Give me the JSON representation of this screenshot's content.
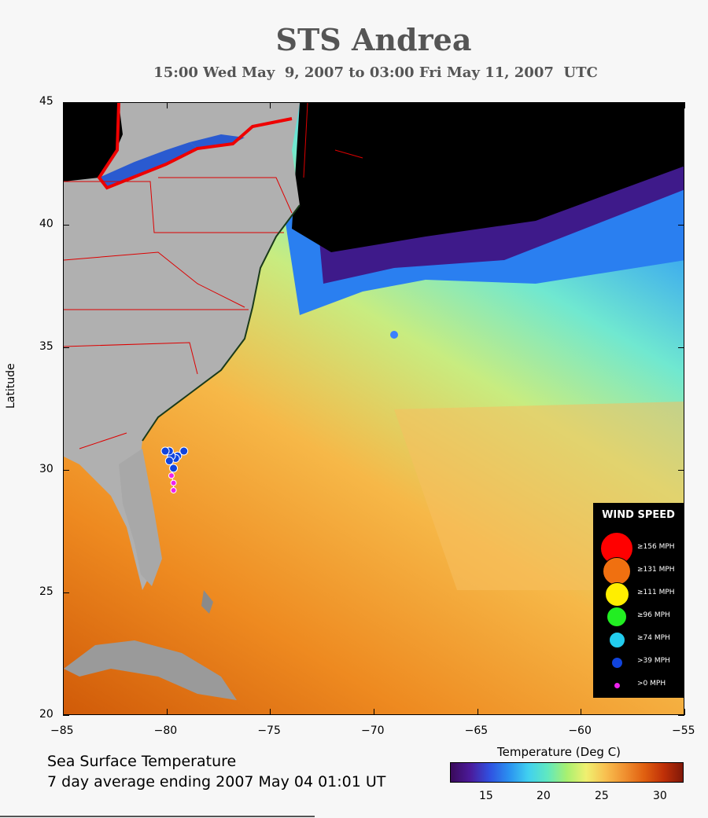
{
  "header": {
    "title": "STS Andrea",
    "subtitle": "15:00 Wed May  9, 2007 to 03:00 Fri May 11, 2007  UTC"
  },
  "axes": {
    "y_label": "Latitude",
    "lat_ticks": [
      "45",
      "40",
      "35",
      "30",
      "25",
      "20"
    ],
    "lon_ticks": [
      "−85",
      "−80",
      "−75",
      "−70",
      "−65",
      "−60",
      "−55"
    ],
    "lon_range": [
      -85,
      -55
    ],
    "lat_range": [
      20,
      45
    ]
  },
  "legend": {
    "title": "WIND SPEED",
    "items": [
      {
        "label": "≥156 MPH",
        "color": "#ff0000"
      },
      {
        "label": "≥131 MPH",
        "color": "#f07010"
      },
      {
        "label": "≥111 MPH",
        "color": "#ffee00"
      },
      {
        "label": "≥96 MPH",
        "color": "#22ee22"
      },
      {
        "label": "≥74 MPH",
        "color": "#22ccee"
      },
      {
        "label": ">39 MPH",
        "color": "#1144dd"
      },
      {
        "label": ">0 MPH",
        "color": "#ee22ee"
      }
    ]
  },
  "footer": {
    "line1": "Sea Surface Temperature",
    "line2": "7 day average ending 2007 May 04 01:01 UT"
  },
  "colorbar": {
    "title": "Temperature (Deg C)",
    "ticks": [
      "15",
      "20",
      "25",
      "30"
    ],
    "colors": [
      "#3a0a5a",
      "#4b1a9a",
      "#3050e0",
      "#2a90f0",
      "#40d0f0",
      "#60e8c0",
      "#a8f070",
      "#f0f070",
      "#f8c050",
      "#f09030",
      "#e06010",
      "#c03008",
      "#801808"
    ]
  },
  "storm_track": {
    "points": [
      {
        "lon": -79.2,
        "lat": 30.8,
        "cat": "ts"
      },
      {
        "lon": -79.5,
        "lat": 30.6,
        "cat": "ts"
      },
      {
        "lon": -79.6,
        "lat": 30.5,
        "cat": "ts"
      },
      {
        "lon": -79.8,
        "lat": 30.6,
        "cat": "ts"
      },
      {
        "lon": -79.9,
        "lat": 30.8,
        "cat": "ts"
      },
      {
        "lon": -80.1,
        "lat": 30.8,
        "cat": "ts"
      },
      {
        "lon": -79.9,
        "lat": 30.4,
        "cat": "ts"
      },
      {
        "lon": -79.7,
        "lat": 30.1,
        "cat": "ts"
      },
      {
        "lon": -79.8,
        "lat": 29.8,
        "cat": "td"
      },
      {
        "lon": -79.7,
        "lat": 29.5,
        "cat": "td"
      },
      {
        "lon": -79.7,
        "lat": 29.2,
        "cat": "td"
      }
    ]
  }
}
